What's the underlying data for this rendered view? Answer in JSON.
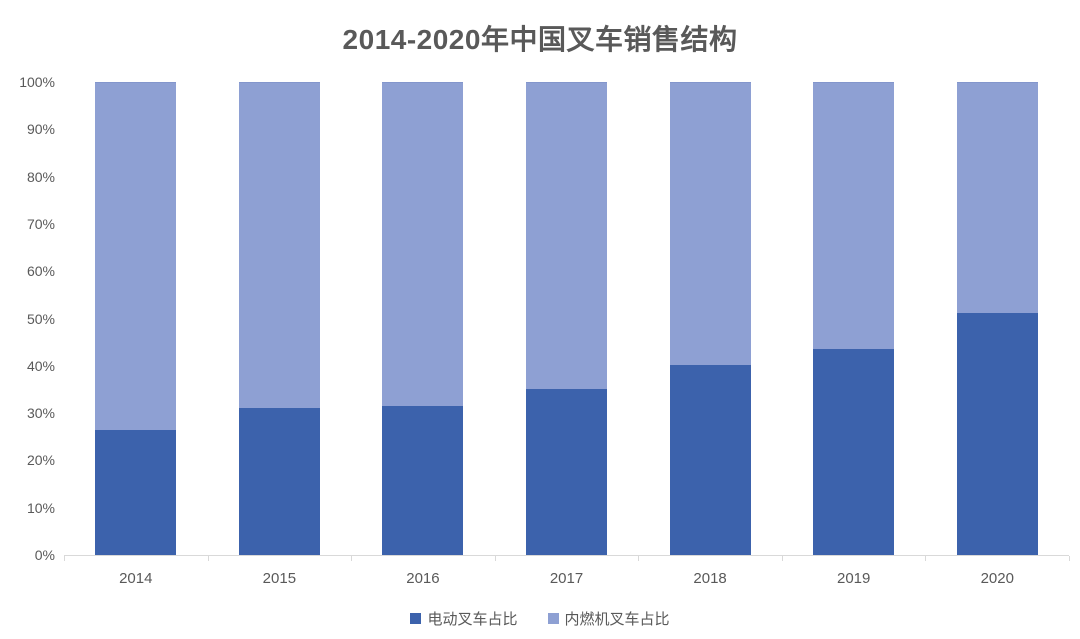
{
  "title": "2014-2020年中国叉车销售结构",
  "chart_data": {
    "type": "bar",
    "subtype": "stacked-100-percent",
    "title": "2014-2020年中国叉车销售结构",
    "categories": [
      "2014",
      "2015",
      "2016",
      "2017",
      "2018",
      "2019",
      "2020"
    ],
    "series": [
      {
        "name": "电动叉车占比",
        "color": "#3c62ac",
        "values": [
          26.4,
          31.0,
          31.6,
          35.0,
          40.1,
          43.6,
          51.2
        ]
      },
      {
        "name": "内燃机叉车占比",
        "color": "#8ea0d3",
        "values": [
          73.6,
          69.0,
          68.4,
          65.0,
          59.9,
          56.4,
          48.8
        ]
      }
    ],
    "xlabel": "",
    "ylabel": "",
    "ylim": [
      0,
      100
    ],
    "y_ticks": [
      "0%",
      "10%",
      "20%",
      "30%",
      "40%",
      "50%",
      "60%",
      "70%",
      "80%",
      "90%",
      "100%"
    ],
    "grid": false,
    "legend_position": "bottom"
  },
  "colors": {
    "electric_bar": "#3c62ac",
    "ice_bar": "#8ea0d3",
    "text_gray": "#595959",
    "axis_line": "#d9d9d9",
    "background": "#ffffff"
  }
}
